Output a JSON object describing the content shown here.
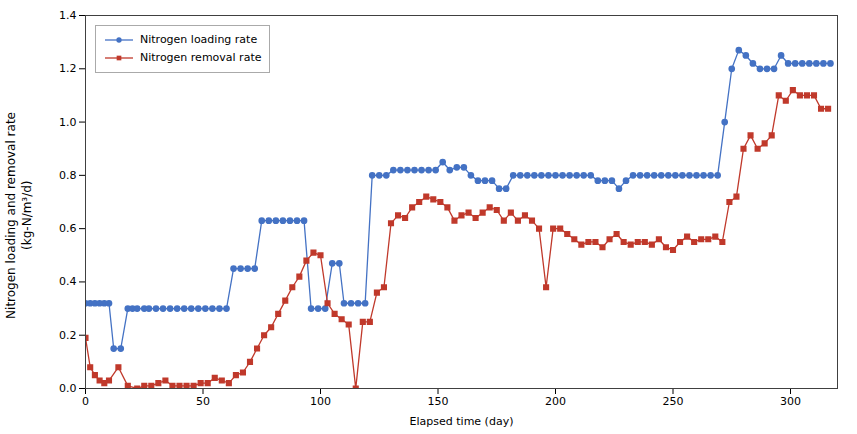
{
  "chart_data": {
    "type": "line",
    "xlabel": "Elapsed time (day)",
    "ylabel": "Nitrogen loading and removal rate\n(kg-N/m³/d)",
    "xlim": [
      0,
      320
    ],
    "ylim": [
      0.0,
      1.4
    ],
    "xticks": [
      0,
      50,
      100,
      150,
      200,
      250,
      300
    ],
    "yticks": [
      {
        "value": 0.0,
        "label": "0.0"
      },
      0.2,
      0.4,
      0.6,
      0.8,
      {
        "value": 1.0,
        "label": "1.0"
      },
      1.2,
      1.4
    ],
    "grid": false,
    "legend": "upper left",
    "series": [
      {
        "name": "Nitrogen loading rate",
        "color": "#4472C4",
        "marker": "circle",
        "line_style": "solid",
        "x": [
          0,
          2,
          4,
          6,
          8,
          10,
          12,
          15,
          18,
          20,
          22,
          25,
          27,
          30,
          33,
          36,
          39,
          42,
          45,
          48,
          51,
          54,
          57,
          60,
          63,
          66,
          69,
          72,
          75,
          78,
          81,
          84,
          87,
          90,
          93,
          96,
          99,
          102,
          105,
          108,
          110,
          113,
          116,
          119,
          122,
          125,
          128,
          131,
          134,
          137,
          140,
          143,
          146,
          149,
          152,
          155,
          158,
          161,
          164,
          167,
          170,
          173,
          176,
          179,
          182,
          185,
          188,
          191,
          194,
          197,
          200,
          203,
          206,
          209,
          212,
          215,
          218,
          221,
          224,
          227,
          230,
          233,
          236,
          239,
          242,
          245,
          248,
          251,
          254,
          257,
          260,
          263,
          266,
          269,
          272,
          275,
          278,
          281,
          284,
          287,
          290,
          293,
          296,
          299,
          302,
          305,
          308,
          311,
          314,
          317
        ],
        "values": [
          0.32,
          0.32,
          0.32,
          0.32,
          0.32,
          0.32,
          0.15,
          0.15,
          0.3,
          0.3,
          0.3,
          0.3,
          0.3,
          0.3,
          0.3,
          0.3,
          0.3,
          0.3,
          0.3,
          0.3,
          0.3,
          0.3,
          0.3,
          0.3,
          0.45,
          0.45,
          0.45,
          0.45,
          0.63,
          0.63,
          0.63,
          0.63,
          0.63,
          0.63,
          0.63,
          0.3,
          0.3,
          0.3,
          0.47,
          0.47,
          0.32,
          0.32,
          0.32,
          0.32,
          0.8,
          0.8,
          0.8,
          0.82,
          0.82,
          0.82,
          0.82,
          0.82,
          0.82,
          0.82,
          0.85,
          0.82,
          0.83,
          0.83,
          0.8,
          0.78,
          0.78,
          0.78,
          0.75,
          0.75,
          0.8,
          0.8,
          0.8,
          0.8,
          0.8,
          0.8,
          0.8,
          0.8,
          0.8,
          0.8,
          0.8,
          0.8,
          0.78,
          0.78,
          0.78,
          0.75,
          0.78,
          0.8,
          0.8,
          0.8,
          0.8,
          0.8,
          0.8,
          0.8,
          0.8,
          0.8,
          0.8,
          0.8,
          0.8,
          0.8,
          1.0,
          1.2,
          1.27,
          1.25,
          1.22,
          1.2,
          1.2,
          1.2,
          1.25,
          1.22,
          1.22,
          1.22,
          1.22,
          1.22,
          1.22,
          1.22
        ]
      },
      {
        "name": "Nitrogen removal rate",
        "color": "#C0392B",
        "marker": "square",
        "line_style": "solid",
        "x": [
          0,
          2,
          4,
          6,
          8,
          10,
          14,
          18,
          22,
          25,
          28,
          31,
          34,
          37,
          40,
          43,
          46,
          49,
          52,
          55,
          58,
          61,
          64,
          67,
          70,
          73,
          76,
          79,
          82,
          85,
          88,
          91,
          94,
          97,
          100,
          103,
          106,
          109,
          112,
          115,
          118,
          121,
          124,
          127,
          130,
          133,
          136,
          139,
          142,
          145,
          148,
          151,
          154,
          157,
          160,
          163,
          166,
          169,
          172,
          175,
          178,
          181,
          184,
          187,
          190,
          193,
          196,
          199,
          202,
          205,
          208,
          211,
          214,
          217,
          220,
          223,
          226,
          229,
          232,
          235,
          238,
          241,
          244,
          247,
          250,
          253,
          256,
          259,
          262,
          265,
          268,
          271,
          274,
          277,
          280,
          283,
          286,
          289,
          292,
          295,
          298,
          301,
          304,
          307,
          310,
          313,
          316
        ],
        "values": [
          0.19,
          0.08,
          0.05,
          0.03,
          0.02,
          0.03,
          0.08,
          0.01,
          0.0,
          0.01,
          0.01,
          0.02,
          0.03,
          0.01,
          0.01,
          0.01,
          0.01,
          0.02,
          0.02,
          0.04,
          0.03,
          0.02,
          0.05,
          0.06,
          0.1,
          0.15,
          0.2,
          0.23,
          0.28,
          0.33,
          0.38,
          0.42,
          0.48,
          0.51,
          0.5,
          0.32,
          0.28,
          0.26,
          0.24,
          0.0,
          0.25,
          0.25,
          0.36,
          0.38,
          0.62,
          0.65,
          0.64,
          0.68,
          0.7,
          0.72,
          0.71,
          0.7,
          0.68,
          0.63,
          0.65,
          0.66,
          0.64,
          0.66,
          0.68,
          0.67,
          0.63,
          0.66,
          0.63,
          0.65,
          0.63,
          0.6,
          0.38,
          0.6,
          0.6,
          0.58,
          0.56,
          0.54,
          0.55,
          0.55,
          0.53,
          0.56,
          0.58,
          0.55,
          0.54,
          0.55,
          0.55,
          0.54,
          0.56,
          0.53,
          0.52,
          0.55,
          0.57,
          0.55,
          0.56,
          0.56,
          0.57,
          0.55,
          0.7,
          0.72,
          0.9,
          0.95,
          0.9,
          0.92,
          0.95,
          1.1,
          1.08,
          1.12,
          1.1,
          1.1,
          1.1,
          1.05,
          1.05
        ]
      }
    ]
  }
}
